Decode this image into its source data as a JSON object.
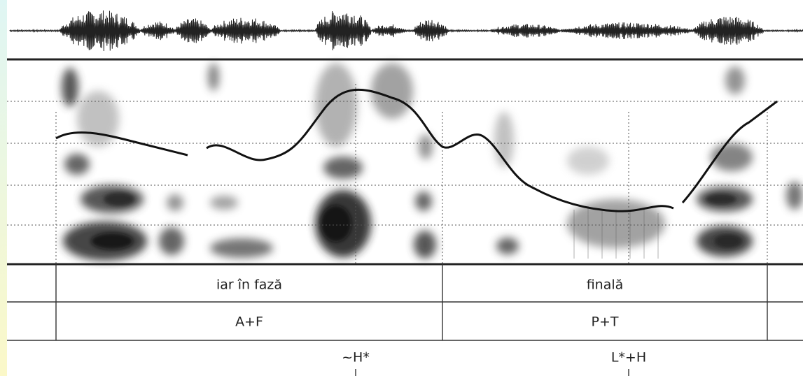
{
  "words": [
    "iar în fază",
    "finală"
  ],
  "phrases": [
    "A+F",
    "P+T"
  ],
  "tones": [
    "~H*",
    "L*+H"
  ]
}
